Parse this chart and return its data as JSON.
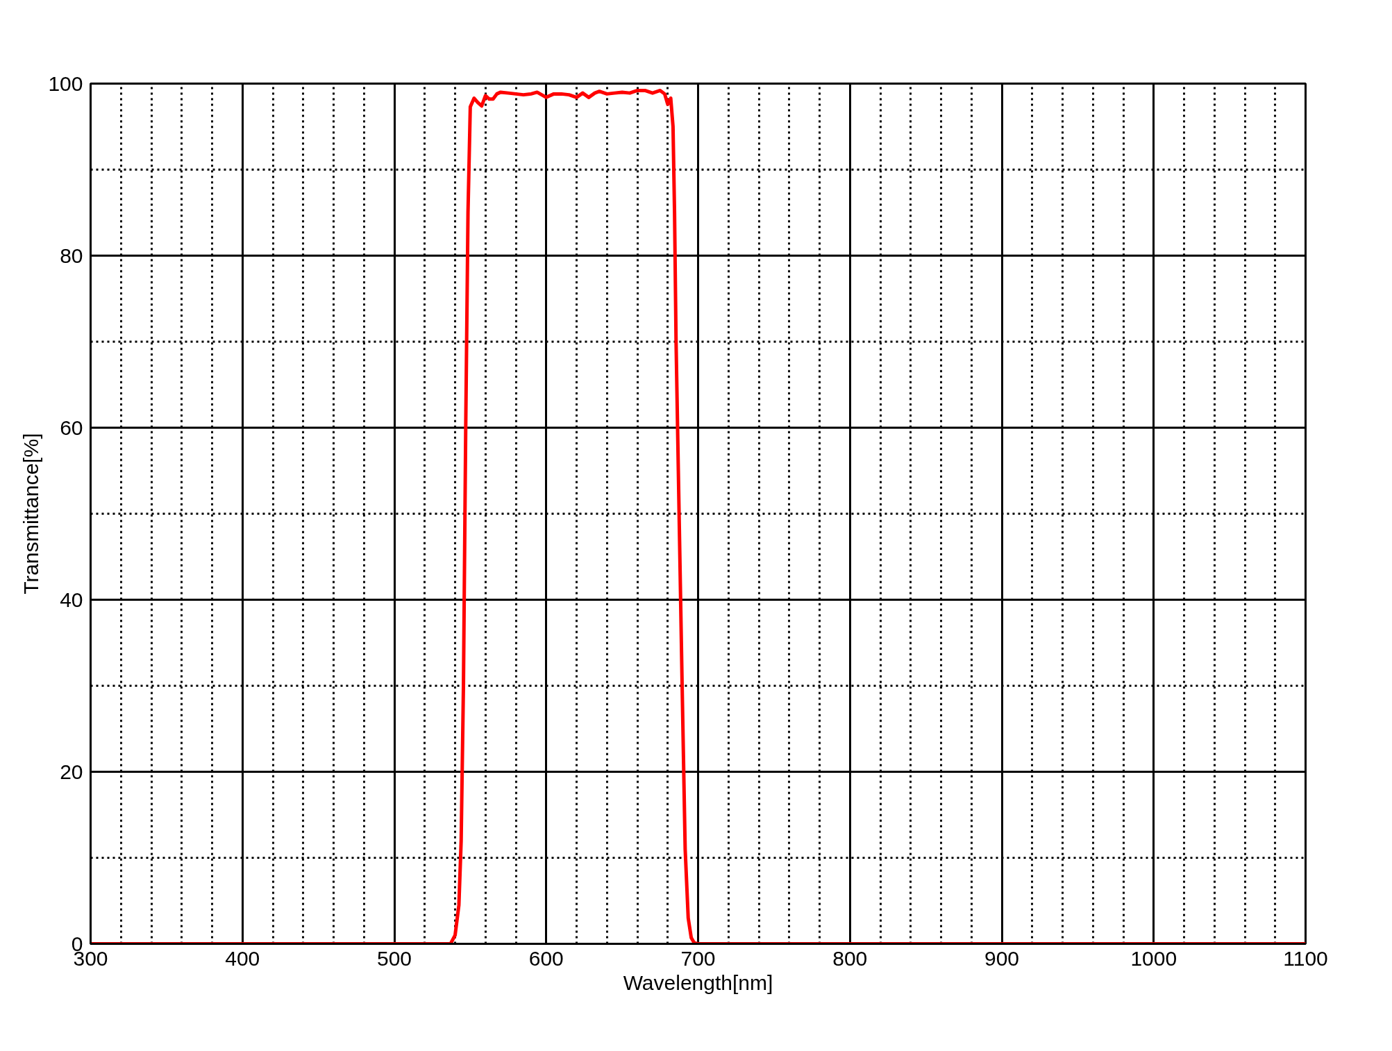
{
  "chart_data": {
    "type": "line",
    "xlabel": "Wavelength[nm]",
    "ylabel": "Transmittance[%]",
    "xlim": [
      300,
      1100
    ],
    "ylim": [
      0,
      100
    ],
    "xticks": [
      300,
      400,
      500,
      600,
      700,
      800,
      900,
      1000,
      1100
    ],
    "yticks": [
      0,
      20,
      40,
      60,
      80,
      100
    ],
    "grid": true,
    "marker": "none",
    "line_style": "solid",
    "series": [
      {
        "color": "#ff0000",
        "x": [
          300,
          400,
          500,
          537,
          540,
          542.5,
          544,
          545.5,
          547,
          548.5,
          550,
          552.5,
          555,
          557.5,
          560,
          562.5,
          565,
          567.5,
          570,
          575,
          580,
          585,
          590,
          594,
          600,
          605,
          610,
          615,
          620,
          624,
          628,
          632,
          635,
          640,
          645,
          650,
          655,
          660,
          665,
          670,
          675,
          678,
          680,
          682,
          683.5,
          684.5,
          685.5,
          687,
          689.5,
          691.5,
          693.5,
          695.5,
          697.5,
          700,
          800,
          900,
          1000,
          1100
        ],
        "values": [
          0,
          0,
          0,
          0,
          1,
          4.5,
          12,
          30,
          60,
          85,
          97.3,
          98.3,
          97.8,
          97.4,
          98.6,
          98.2,
          98.2,
          98.8,
          99.0,
          98.9,
          98.8,
          98.7,
          98.8,
          99.0,
          98.4,
          98.8,
          98.8,
          98.7,
          98.4,
          98.9,
          98.4,
          98.9,
          99.1,
          98.8,
          98.9,
          99.0,
          98.9,
          99.2,
          99.2,
          98.9,
          99.2,
          98.8,
          97.6,
          98.3,
          95,
          85,
          70,
          55,
          30,
          11,
          3,
          0.7,
          0.1,
          0,
          0,
          0,
          0,
          0
        ]
      }
    ]
  }
}
